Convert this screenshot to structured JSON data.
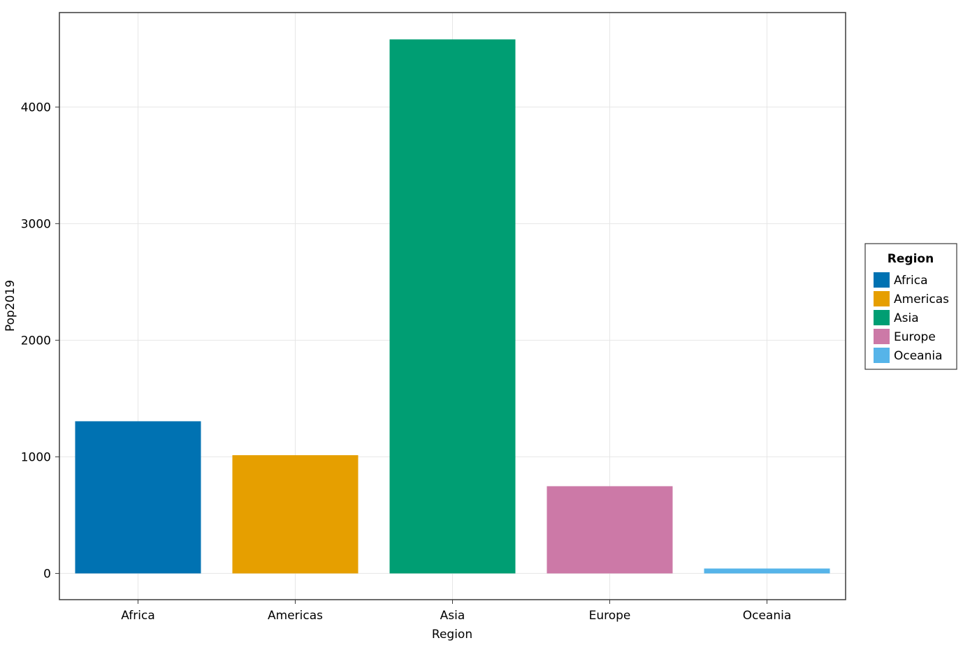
{
  "chart_data": {
    "type": "bar",
    "xlabel": "Region",
    "ylabel": "Pop2019",
    "categories": [
      "Africa",
      "Americas",
      "Asia",
      "Europe",
      "Oceania"
    ],
    "values": [
      1305,
      1014,
      4580,
      748,
      42
    ],
    "colors": [
      "#0072b2",
      "#e69f00",
      "#009e73",
      "#cc79a7",
      "#56b4e9"
    ],
    "ylim": [
      -225,
      4810
    ],
    "yticks": [
      0,
      1000,
      2000,
      3000,
      4000
    ],
    "ytick_labels": [
      "0",
      "1000",
      "2000",
      "3000",
      "4000"
    ],
    "grid": true,
    "legend": {
      "title": "Region",
      "placement": "right",
      "entries": [
        "Africa",
        "Americas",
        "Asia",
        "Europe",
        "Oceania"
      ]
    }
  }
}
